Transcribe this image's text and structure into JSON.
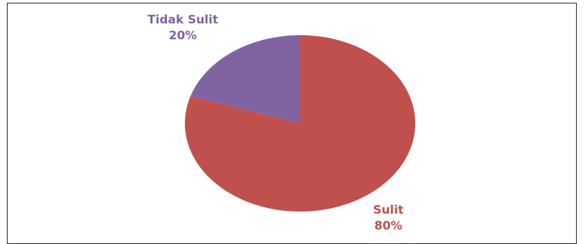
{
  "chart_data": {
    "type": "pie",
    "title": "",
    "slices": [
      {
        "label": "Sulit",
        "value": 80,
        "percent_label": "80%",
        "color": "#c0504d"
      },
      {
        "label": "Tidak Sulit",
        "value": 20,
        "percent_label": "20%",
        "color": "#8064a2"
      }
    ],
    "legend": "none",
    "data_labels": "outside"
  }
}
